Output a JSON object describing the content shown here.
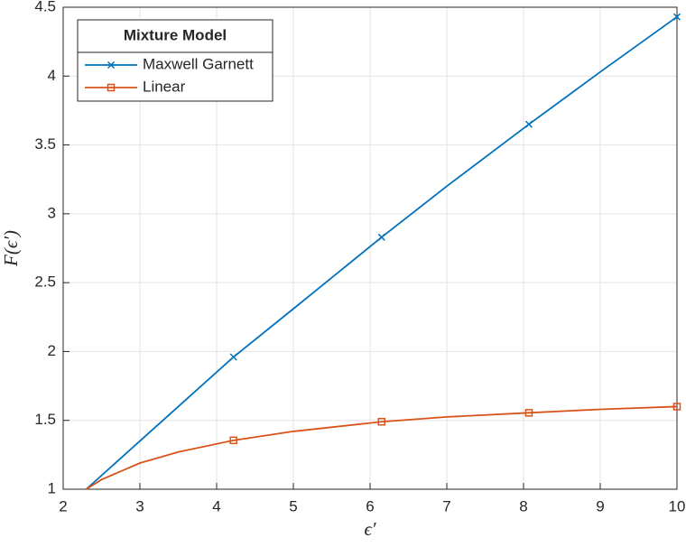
{
  "chart_data": {
    "type": "line",
    "x": [
      2.3,
      2.5,
      3,
      3.5,
      4.22,
      5,
      6.15,
      7,
      8.07,
      9,
      10
    ],
    "series": [
      {
        "name": "Maxwell Garnett",
        "color": "#0072bd",
        "marker": "x",
        "values": [
          1,
          1.1,
          1.35,
          1.6,
          1.96,
          2.31,
          2.83,
          3.2,
          3.65,
          4.03,
          4.43
        ]
      },
      {
        "name": "Linear",
        "color": "#d95319",
        "marker": "square",
        "values": [
          1,
          1.07,
          1.19,
          1.27,
          1.355,
          1.42,
          1.49,
          1.525,
          1.555,
          1.58,
          1.6
        ]
      }
    ],
    "marker_indices": [
      4,
      6,
      8,
      10
    ],
    "legend_title": "Mixture Model",
    "legend": "upper left",
    "xlabel": "ϵ′",
    "ylabel": "F(ϵ′)",
    "xlim": [
      2,
      10
    ],
    "xticks": [
      2,
      3,
      4,
      5,
      6,
      7,
      8,
      9,
      10
    ],
    "ylim": [
      1,
      4.5
    ],
    "yticks": [
      1,
      1.5,
      2,
      2.5,
      3,
      3.5,
      4,
      4.5
    ],
    "grid": true
  }
}
